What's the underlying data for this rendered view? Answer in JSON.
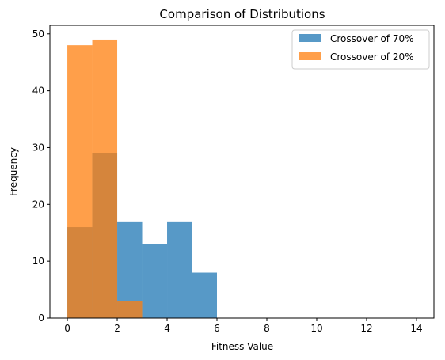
{
  "chart_data": {
    "type": "bar",
    "title": "Comparison of Distributions",
    "xlabel": "Fitness Value",
    "ylabel": "Frequency",
    "xlim": [
      -0.7,
      14.7
    ],
    "ylim": [
      0,
      51.5
    ],
    "xticks": [
      0,
      2,
      4,
      6,
      8,
      10,
      12,
      14
    ],
    "yticks": [
      0,
      10,
      20,
      30,
      40,
      50
    ],
    "legend_position": "top-right",
    "series": [
      {
        "name": "Crossover of 70%",
        "color": "#1f77b4",
        "bins": [
          {
            "x0": 0,
            "x1": 1,
            "count": 16
          },
          {
            "x0": 1,
            "x1": 2,
            "count": 29
          },
          {
            "x0": 2,
            "x1": 3,
            "count": 17
          },
          {
            "x0": 3,
            "x1": 4,
            "count": 13
          },
          {
            "x0": 4,
            "x1": 5,
            "count": 17
          },
          {
            "x0": 5,
            "x1": 6,
            "count": 8
          }
        ]
      },
      {
        "name": "Crossover of 20%",
        "color": "#ff7f0e",
        "bins": [
          {
            "x0": 0,
            "x1": 1,
            "count": 48
          },
          {
            "x0": 1,
            "x1": 2,
            "count": 49
          },
          {
            "x0": 2,
            "x1": 3,
            "count": 3
          }
        ]
      }
    ]
  }
}
